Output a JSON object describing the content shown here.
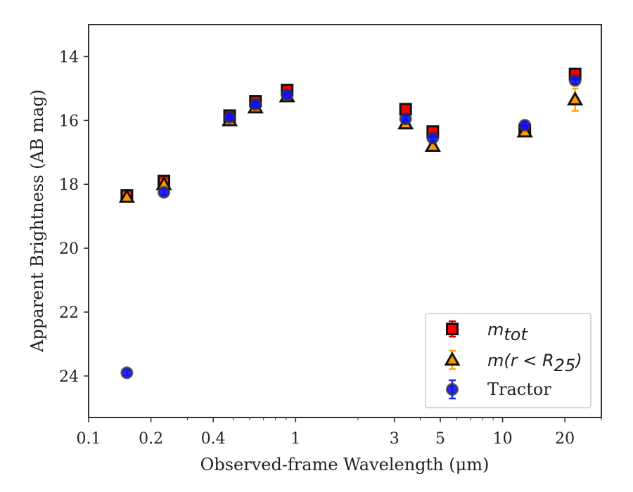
{
  "colors": {
    "total": "#ff0000",
    "total_err": "#dd0000",
    "r25_fill": "#ff9900",
    "r25_err": "#ffaa00",
    "tractor_fill": "#1010ff",
    "tractor_err": "#2222ff",
    "edge": "#111111",
    "tractor_edge": "#333333",
    "axis": "#333333"
  },
  "chart_data": {
    "type": "scatter",
    "xlabel": "Observed-frame Wavelength (μm)",
    "ylabel": "Apparent Brightness (AB mag)",
    "xscale": "log",
    "xlim": [
      0.1,
      30
    ],
    "ylim": [
      25.3,
      13.0
    ],
    "y_inverted": true,
    "xticks": [
      0.1,
      0.2,
      0.4,
      1,
      3,
      5,
      10,
      20
    ],
    "xtick_labels": [
      "0.1",
      "0.2",
      "0.4",
      "1",
      "3",
      "5",
      "10",
      "20"
    ],
    "yticks": [
      14,
      16,
      18,
      20,
      22,
      24
    ],
    "ytick_labels": [
      "14",
      "16",
      "18",
      "20",
      "22",
      "24"
    ],
    "grid": false,
    "legend_position": "bottom-right",
    "legend": {
      "total": {
        "base": "m",
        "sub": "tot"
      },
      "r25": {
        "base": "m",
        "mid": "(r < R",
        "sub": "25",
        "tail": ")"
      },
      "tractor": {
        "text": "Tractor"
      }
    },
    "series": [
      {
        "key": "total",
        "marker": "square",
        "points": [
          {
            "x": 0.153,
            "y": 18.35,
            "err": 0.15
          },
          {
            "x": 0.231,
            "y": 17.9,
            "err": 0.12
          },
          {
            "x": 0.48,
            "y": 15.85,
            "err": 0.08
          },
          {
            "x": 0.64,
            "y": 15.4,
            "err": 0.08
          },
          {
            "x": 0.91,
            "y": 15.05,
            "err": 0.08
          },
          {
            "x": 3.4,
            "y": 15.65,
            "err": 0.06
          },
          {
            "x": 4.6,
            "y": 16.35,
            "err": 0.06
          },
          {
            "x": 12.8,
            "y": 16.3,
            "err": 0.1
          },
          {
            "x": 22.4,
            "y": 14.55,
            "err": 0.12
          }
        ]
      },
      {
        "key": "r25",
        "marker": "triangle",
        "points": [
          {
            "x": 0.153,
            "y": 18.4,
            "err": 0.12
          },
          {
            "x": 0.231,
            "y": 18.0,
            "err": 0.12
          },
          {
            "x": 0.48,
            "y": 16.0,
            "err": 0.06
          },
          {
            "x": 0.64,
            "y": 15.6,
            "err": 0.06
          },
          {
            "x": 0.91,
            "y": 15.25,
            "err": 0.06
          },
          {
            "x": 3.4,
            "y": 16.1,
            "err": 0.06
          },
          {
            "x": 4.6,
            "y": 16.8,
            "err": 0.08
          },
          {
            "x": 12.8,
            "y": 16.35,
            "err": 0.1
          },
          {
            "x": 22.4,
            "y": 15.35,
            "err": 0.35
          }
        ]
      },
      {
        "key": "tractor",
        "marker": "circle",
        "points": [
          {
            "x": 0.153,
            "y": 23.9,
            "err": 0.08
          },
          {
            "x": 0.231,
            "y": 18.25,
            "err": 0.08
          },
          {
            "x": 0.48,
            "y": 15.9,
            "err": 0.06
          },
          {
            "x": 0.64,
            "y": 15.5,
            "err": 0.06
          },
          {
            "x": 0.91,
            "y": 15.2,
            "err": 0.06
          },
          {
            "x": 3.4,
            "y": 15.95,
            "err": 0.06
          },
          {
            "x": 4.6,
            "y": 16.55,
            "err": 0.08
          },
          {
            "x": 12.8,
            "y": 16.15,
            "err": 0.1
          },
          {
            "x": 22.4,
            "y": 14.75,
            "err": 0.1
          }
        ]
      }
    ]
  }
}
